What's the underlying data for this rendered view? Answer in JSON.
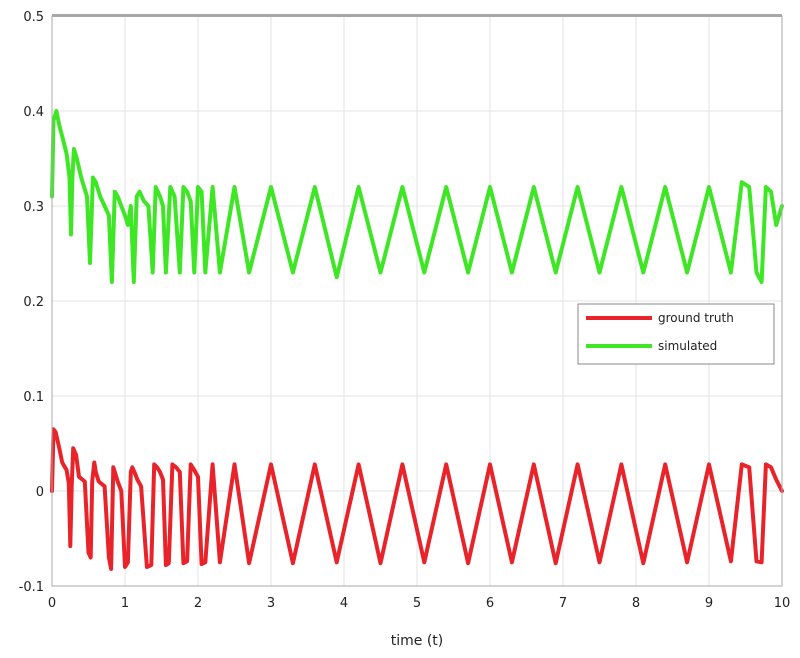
{
  "chart_data": {
    "type": "line",
    "title": "",
    "xlabel": "time (t)",
    "ylabel": "",
    "xlim": [
      0,
      10
    ],
    "ylim": [
      -0.1,
      0.5
    ],
    "xticks": [
      "0",
      "1",
      "2",
      "3",
      "4",
      "5",
      "6",
      "7",
      "8",
      "9",
      "10"
    ],
    "yticks": [
      "-0.1",
      "0",
      "0.1",
      "0.2",
      "0.3",
      "0.4",
      "0.5"
    ],
    "grid": true,
    "legend_position": "right",
    "series": [
      {
        "name": "ground truth",
        "color": "#e8242a",
        "x": [
          0,
          0.02,
          0.05,
          0.1,
          0.14,
          0.2,
          0.23,
          0.25,
          0.27,
          0.29,
          0.33,
          0.37,
          0.45,
          0.5,
          0.53,
          0.55,
          0.58,
          0.6,
          0.64,
          0.72,
          0.78,
          0.81,
          0.84,
          0.86,
          0.9,
          0.95,
          1.0,
          1.04,
          1.08,
          1.1,
          1.14,
          1.17,
          1.22,
          1.3,
          1.36,
          1.4,
          1.44,
          1.48,
          1.52,
          1.56,
          1.6,
          1.65,
          1.7,
          1.75,
          1.8,
          1.85,
          1.9,
          1.95,
          2.0,
          2.05,
          2.1,
          2.2,
          2.3,
          2.5,
          2.7,
          3.0,
          3.3,
          3.6,
          3.9,
          4.2,
          4.5,
          4.8,
          5.1,
          5.4,
          5.7,
          6.0,
          6.3,
          6.6,
          6.9,
          7.2,
          7.5,
          7.8,
          8.1,
          8.4,
          8.7,
          9.0,
          9.3,
          9.45,
          9.55,
          9.65,
          9.72,
          9.78,
          9.85,
          9.92,
          10.0
        ],
        "values": [
          0.0,
          0.065,
          0.062,
          0.045,
          0.03,
          0.022,
          0.008,
          -0.058,
          0.005,
          0.045,
          0.038,
          0.015,
          0.01,
          -0.065,
          -0.07,
          0.01,
          0.03,
          0.02,
          0.01,
          0.005,
          -0.07,
          -0.082,
          0.025,
          0.02,
          0.01,
          0.0,
          -0.08,
          -0.075,
          0.02,
          0.025,
          0.018,
          0.012,
          0.005,
          -0.08,
          -0.078,
          0.028,
          0.025,
          0.02,
          0.012,
          -0.078,
          -0.076,
          0.028,
          0.025,
          0.02,
          -0.076,
          -0.074,
          0.028,
          0.022,
          0.015,
          -0.077,
          -0.075,
          0.028,
          -0.075,
          0.028,
          -0.076,
          0.028,
          -0.076,
          0.028,
          -0.075,
          0.028,
          -0.076,
          0.028,
          -0.075,
          0.028,
          -0.076,
          0.028,
          -0.075,
          0.028,
          -0.076,
          0.028,
          -0.075,
          0.028,
          -0.076,
          0.028,
          -0.075,
          0.028,
          -0.074,
          0.028,
          0.025,
          -0.074,
          -0.075,
          0.028,
          0.025,
          0.012,
          0.0
        ]
      },
      {
        "name": "simulated",
        "color": "#3ee626",
        "x": [
          0,
          0.02,
          0.06,
          0.1,
          0.15,
          0.2,
          0.24,
          0.26,
          0.28,
          0.3,
          0.34,
          0.4,
          0.48,
          0.52,
          0.56,
          0.6,
          0.66,
          0.72,
          0.78,
          0.82,
          0.86,
          0.9,
          0.95,
          1.0,
          1.04,
          1.08,
          1.12,
          1.16,
          1.2,
          1.26,
          1.32,
          1.38,
          1.42,
          1.48,
          1.52,
          1.56,
          1.62,
          1.68,
          1.75,
          1.8,
          1.85,
          1.9,
          1.95,
          2.0,
          2.05,
          2.1,
          2.2,
          2.3,
          2.5,
          2.7,
          3.0,
          3.3,
          3.6,
          3.9,
          4.2,
          4.5,
          4.8,
          5.1,
          5.4,
          5.7,
          6.0,
          6.3,
          6.6,
          6.9,
          7.2,
          7.5,
          7.8,
          8.1,
          8.4,
          8.7,
          9.0,
          9.3,
          9.45,
          9.55,
          9.65,
          9.72,
          9.78,
          9.85,
          9.92,
          10.0
        ],
        "values": [
          0.31,
          0.39,
          0.4,
          0.385,
          0.37,
          0.355,
          0.33,
          0.27,
          0.33,
          0.36,
          0.35,
          0.33,
          0.31,
          0.24,
          0.33,
          0.325,
          0.31,
          0.3,
          0.29,
          0.22,
          0.315,
          0.31,
          0.3,
          0.29,
          0.28,
          0.3,
          0.22,
          0.31,
          0.315,
          0.305,
          0.3,
          0.23,
          0.32,
          0.31,
          0.3,
          0.23,
          0.32,
          0.31,
          0.23,
          0.32,
          0.315,
          0.305,
          0.23,
          0.32,
          0.315,
          0.23,
          0.32,
          0.23,
          0.32,
          0.23,
          0.32,
          0.23,
          0.32,
          0.225,
          0.32,
          0.23,
          0.32,
          0.23,
          0.32,
          0.23,
          0.32,
          0.23,
          0.32,
          0.23,
          0.32,
          0.23,
          0.32,
          0.23,
          0.32,
          0.23,
          0.32,
          0.23,
          0.325,
          0.32,
          0.23,
          0.22,
          0.32,
          0.315,
          0.28,
          0.3
        ]
      }
    ]
  }
}
